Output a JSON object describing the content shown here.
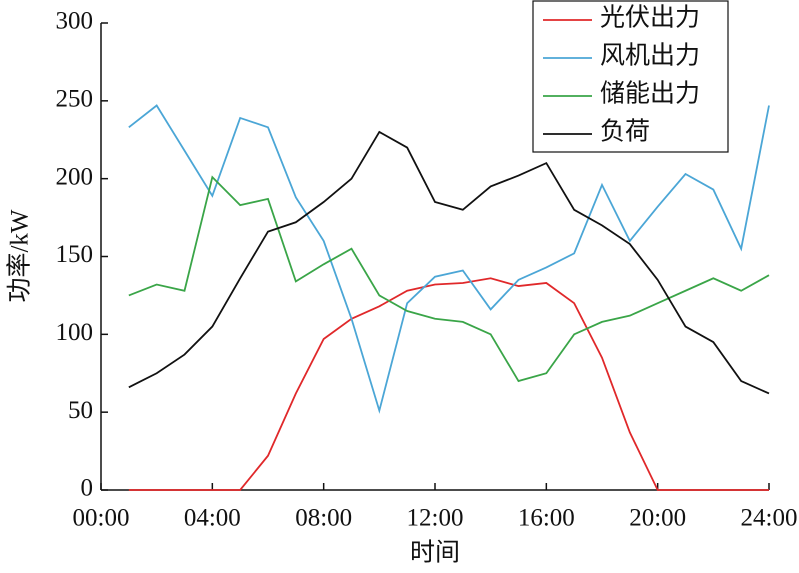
{
  "chart_data": {
    "type": "line",
    "xlabel": "时间",
    "ylabel": "功率/kW",
    "x": [
      1,
      2,
      3,
      4,
      5,
      6,
      7,
      8,
      9,
      10,
      11,
      12,
      13,
      14,
      15,
      16,
      17,
      18,
      19,
      20,
      21,
      22,
      23,
      24
    ],
    "xlim": [
      0,
      24
    ],
    "xticks": [
      {
        "value": 0,
        "label": "00:00"
      },
      {
        "value": 4,
        "label": "04:00"
      },
      {
        "value": 8,
        "label": "08:00"
      },
      {
        "value": 12,
        "label": "12:00"
      },
      {
        "value": 16,
        "label": "16:00"
      },
      {
        "value": 20,
        "label": "20:00"
      },
      {
        "value": 24,
        "label": "24:00"
      }
    ],
    "ylim": [
      0,
      300
    ],
    "yticks": [
      0,
      50,
      100,
      150,
      200,
      250,
      300
    ],
    "legend": "upper right",
    "series": [
      {
        "name": "光伏出力",
        "color": "#e0282a",
        "values": [
          0,
          0,
          0,
          0,
          0,
          22,
          62,
          97,
          110,
          118,
          128,
          132,
          133,
          136,
          131,
          133,
          120,
          85,
          37,
          0,
          0,
          0,
          0,
          0
        ]
      },
      {
        "name": "风机出力",
        "color": "#4ba6d6",
        "values": [
          233,
          247,
          218,
          189,
          239,
          233,
          188,
          160,
          110,
          51,
          120,
          137,
          141,
          116,
          135,
          143,
          152,
          196,
          160,
          182,
          203,
          193,
          155,
          247
        ]
      },
      {
        "name": "储能出力",
        "color": "#3aa548",
        "values": [
          125,
          132,
          128,
          201,
          183,
          187,
          134,
          145,
          155,
          125,
          115,
          110,
          108,
          100,
          70,
          75,
          100,
          108,
          112,
          120,
          128,
          136,
          128,
          138
        ]
      },
      {
        "name": "负荷",
        "color": "#111111",
        "values": [
          66,
          75,
          87,
          105,
          136,
          166,
          172,
          185,
          200,
          230,
          220,
          185,
          180,
          195,
          202,
          210,
          180,
          170,
          158,
          135,
          105,
          95,
          70,
          62
        ]
      }
    ]
  }
}
